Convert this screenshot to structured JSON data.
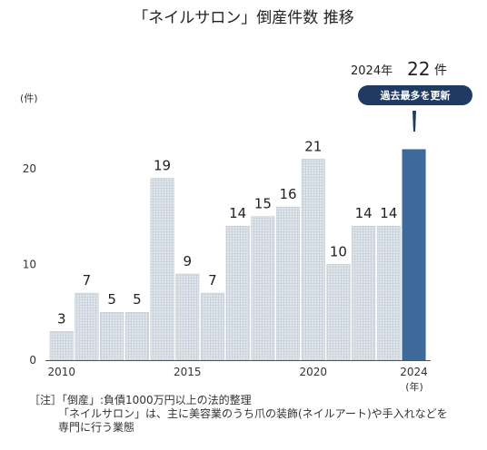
{
  "chart_data": {
    "type": "bar",
    "title": "「ネイルサロン」倒産件数 推移",
    "ylabel": "(件)",
    "xlabel": "(年)",
    "ylim": [
      0,
      27
    ],
    "yticks": [
      "0",
      "10",
      "20"
    ],
    "ytick_values": [
      0,
      10,
      20
    ],
    "xtick_labels": [
      {
        "year": 2010,
        "label": "2010"
      },
      {
        "year": 2015,
        "label": "2015"
      },
      {
        "year": 2020,
        "label": "2020"
      },
      {
        "year": 2024,
        "label": "2024"
      }
    ],
    "categories": [
      2010,
      2011,
      2012,
      2013,
      2014,
      2015,
      2016,
      2017,
      2018,
      2019,
      2020,
      2021,
      2022,
      2023,
      2024
    ],
    "values": [
      3,
      7,
      5,
      5,
      19,
      9,
      7,
      14,
      15,
      16,
      21,
      10,
      14,
      14,
      22
    ],
    "highlight": {
      "year_label": "2024年",
      "value": "22",
      "unit": "件",
      "badge": "過去最多を更新",
      "color": "#3d6a9a"
    },
    "colors": {
      "bar": "#d3dbe3",
      "bar_highlight": "#3d6a9a",
      "badge": "#1f3b63"
    }
  },
  "notes": [
    "［注］「倒産」:負債1000万円以上の法的整理",
    "「ネイルサロン」は、主に美容業のうち爪の装飾(ネイルアート)や手入れなどを",
    "専門に行う業態"
  ]
}
